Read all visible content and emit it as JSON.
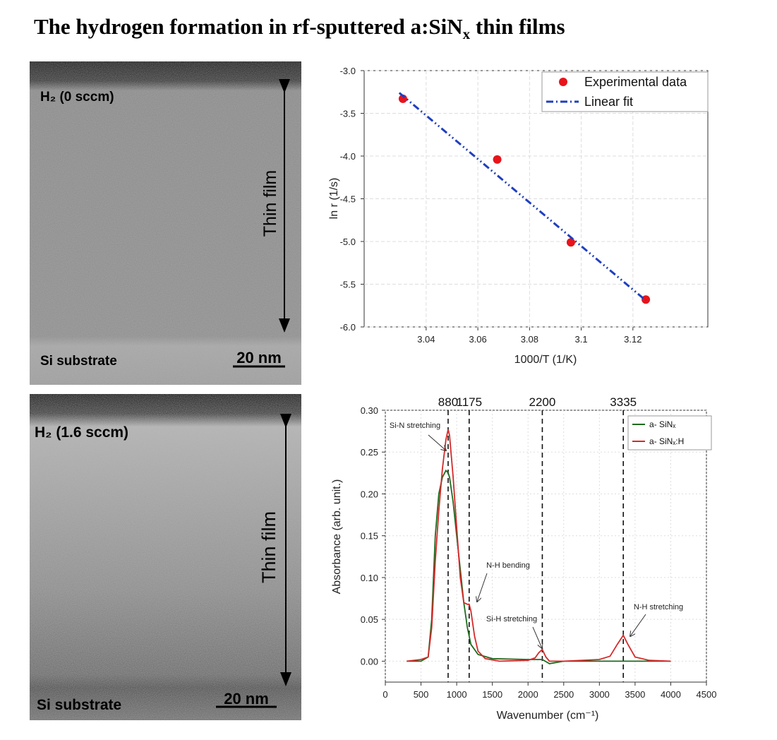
{
  "title": [
    "The hydrogen formation in rf-sputtered a:SiN",
    "x",
    " thin films"
  ],
  "images": [
    {
      "label": "H₂ (0 sccm)",
      "region": "Thin film",
      "substrate": "Si substrate",
      "scale": "20 nm"
    },
    {
      "label": "H₂ (1.6 sccm)",
      "region": "Thin film",
      "substrate": "Si substrate",
      "scale": "20 nm"
    }
  ],
  "chart_data": [
    {
      "type": "scatter",
      "xlabel": "1000/T (1/K)",
      "ylabel": "ln r (1/s)",
      "xlim": [
        3.016,
        3.149
      ],
      "ylim": [
        -6.0,
        -3.0
      ],
      "xticks": [
        3.04,
        3.06,
        3.08,
        3.1,
        3.12
      ],
      "yticks": [
        {
          "value": -3.0,
          "label": "-3.0"
        },
        -3.5,
        {
          "value": -4.0,
          "label": "-4.0"
        },
        -4.5,
        {
          "value": -5.0,
          "label": "-5.0"
        },
        -5.5,
        {
          "value": -6.0,
          "label": "-6.0"
        }
      ],
      "grid": true,
      "legend": "top-right",
      "series": [
        {
          "name": "Experimental data",
          "color": "#e8141b",
          "mode": "markers",
          "x": [
            3.031,
            3.0675,
            3.096,
            3.125
          ],
          "values": [
            -3.33,
            -4.04,
            -5.01,
            -5.68
          ]
        },
        {
          "name": "Linear fit",
          "color": "#1f3fbf",
          "mode": "line",
          "x": [
            3.0296,
            3.125
          ],
          "values": [
            -3.26,
            -5.69
          ]
        }
      ]
    },
    {
      "type": "line",
      "xlabel": "Wavenumber (cm⁻¹)",
      "ylabel": "Absorbance (arb. unit.)",
      "xlim": [
        0,
        4500
      ],
      "ylim": [
        -0.025,
        0.3
      ],
      "xticks": [
        0,
        500,
        1000,
        1500,
        2000,
        2500,
        3000,
        3500,
        4000,
        4500
      ],
      "yticks": [
        {
          "value": 0,
          "label": "0.00"
        },
        0.05,
        {
          "value": 0.1,
          "label": "0.10"
        },
        0.15,
        {
          "value": 0.2,
          "label": "0.20"
        },
        0.25,
        {
          "value": 0.3,
          "label": "0.30"
        }
      ],
      "grid": true,
      "legend": "top-right",
      "vlines": [
        880,
        1175,
        2200,
        3335
      ],
      "annotations": [
        "Si-N stretching",
        "N-H bending",
        "Si-H stretching",
        "N-H stretching"
      ],
      "series": [
        {
          "name": "a- SiNₓ",
          "color": "#1e6b1e",
          "x": [
            300,
            500,
            600,
            650,
            700,
            750,
            800,
            850,
            880,
            900,
            950,
            1000,
            1050,
            1100,
            1150,
            1200,
            1300,
            1500,
            2000,
            2200,
            2300,
            2500,
            3000,
            3500,
            4000
          ],
          "values": [
            0,
            0,
            0.005,
            0.05,
            0.15,
            0.2,
            0.22,
            0.228,
            0.225,
            0.22,
            0.19,
            0.15,
            0.11,
            0.07,
            0.04,
            0.02,
            0.008,
            0.003,
            0.002,
            0.002,
            -0.003,
            0,
            0,
            0,
            0
          ]
        },
        {
          "name": "a- SiNₓ:H",
          "color": "#d42a2a",
          "x": [
            300,
            500,
            600,
            650,
            700,
            750,
            800,
            850,
            880,
            900,
            950,
            1000,
            1050,
            1100,
            1150,
            1175,
            1200,
            1250,
            1300,
            1400,
            1600,
            2000,
            2100,
            2150,
            2200,
            2250,
            2300,
            2500,
            3000,
            3150,
            3250,
            3335,
            3400,
            3500,
            3700,
            4000
          ],
          "values": [
            0,
            0.002,
            0.005,
            0.04,
            0.12,
            0.18,
            0.23,
            0.265,
            0.277,
            0.27,
            0.22,
            0.16,
            0.1,
            0.07,
            0.068,
            0.068,
            0.06,
            0.03,
            0.012,
            0.003,
            0,
            0.001,
            0.004,
            0.01,
            0.014,
            0.005,
            0,
            0,
            0.002,
            0.006,
            0.02,
            0.031,
            0.02,
            0.005,
            0.001,
            0
          ]
        }
      ]
    }
  ]
}
